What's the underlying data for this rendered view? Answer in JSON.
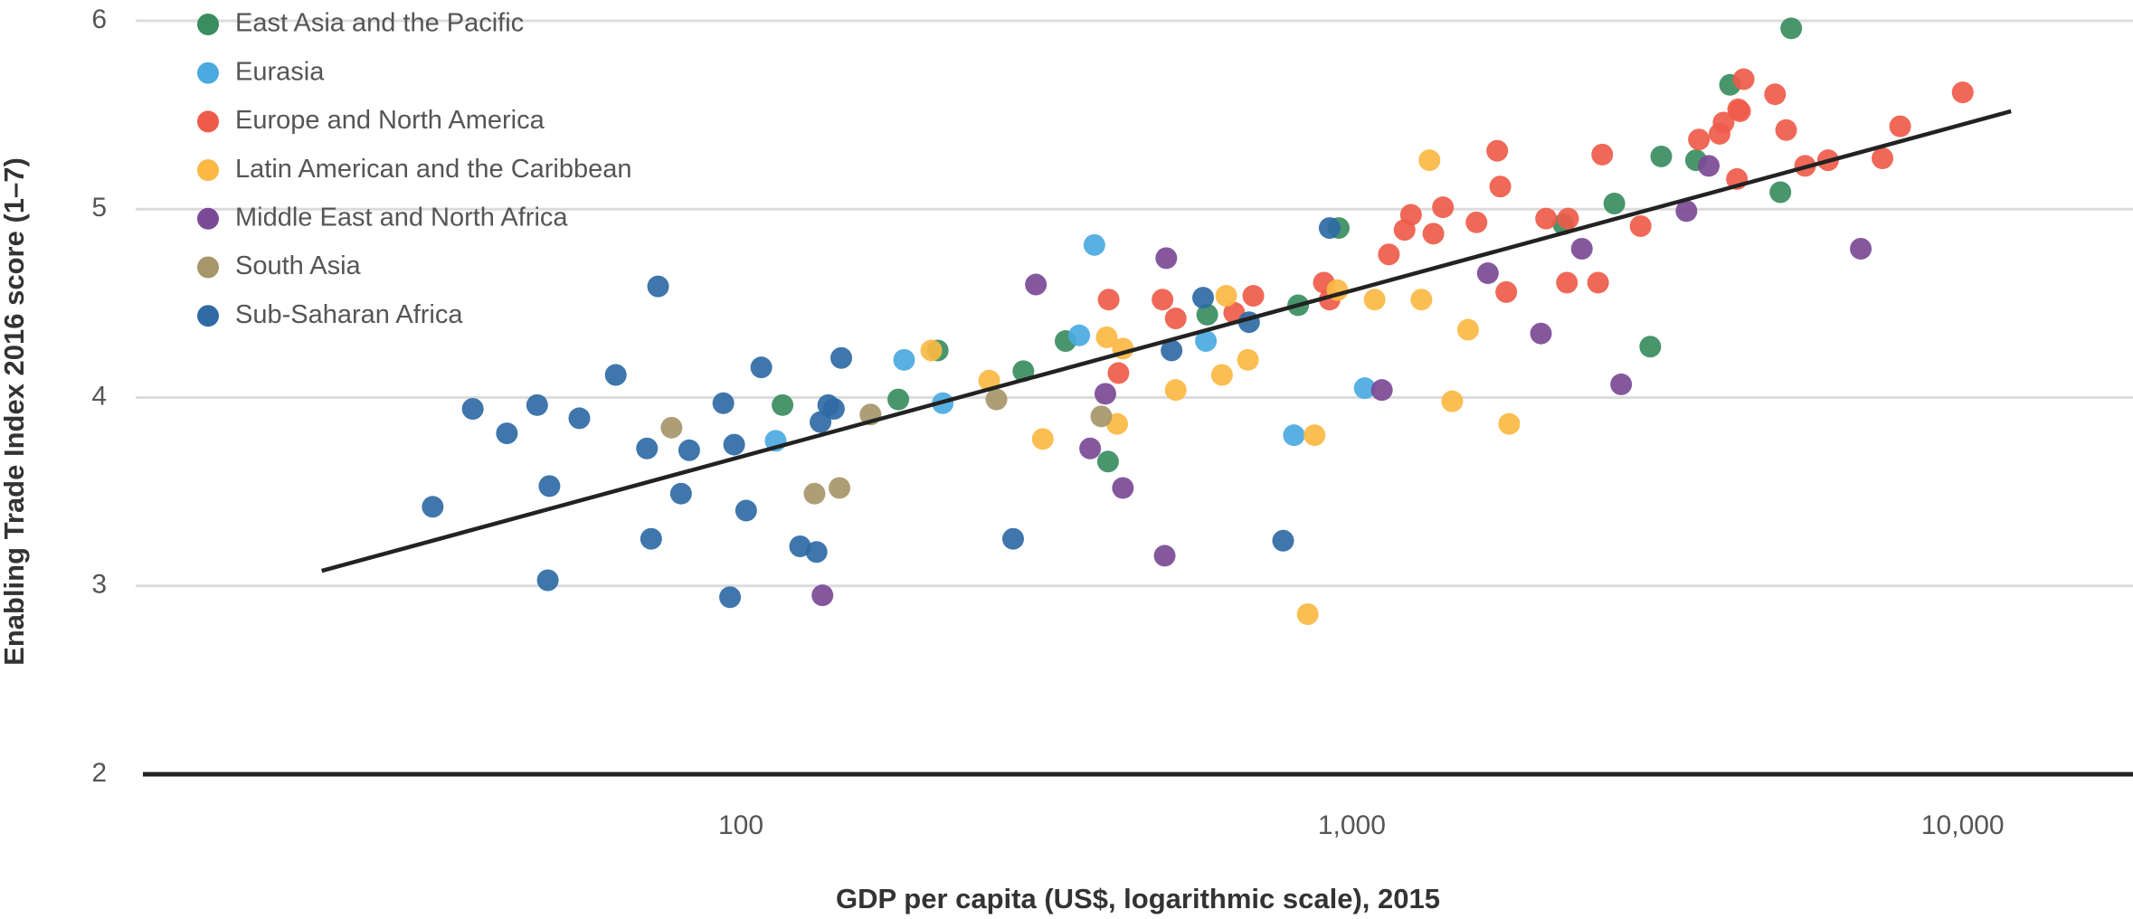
{
  "chart_data": {
    "type": "scatter",
    "xlabel": "GDP per capita (US$, logarithmic scale), 2015",
    "ylabel": "Enabling Trade Index 2016 score (1–7)",
    "xscale": "log",
    "xlim": [
      10.5,
      19000
    ],
    "ylim": [
      2,
      6
    ],
    "xticks": [
      100,
      {
        "value": 1000,
        "label": "1,000"
      },
      {
        "value": 10000,
        "label": "10,000"
      }
    ],
    "yticks": [
      2,
      3,
      4,
      5,
      6
    ],
    "grid": true,
    "legend": "upper left",
    "trend_line": {
      "color": "#222222",
      "x": [
        20.6,
        12000
      ],
      "y": [
        3.08,
        5.52
      ]
    },
    "series": [
      {
        "name": "East Asia and the Pacific",
        "color": "#3a8d5f",
        "x": [
          5240,
          4160,
          3210,
          3660,
          5030,
          2690,
          952,
          2220,
          3080,
          580,
          817,
          340,
          290,
          210,
          181,
          117,
          399
        ],
        "y": [
          5.96,
          5.66,
          5.28,
          5.26,
          5.09,
          5.03,
          4.9,
          4.92,
          4.27,
          4.44,
          4.49,
          4.3,
          4.14,
          4.25,
          3.99,
          3.96,
          3.66
        ]
      },
      {
        "name": "Eurasia",
        "color": "#4aaadf",
        "x": [
          379,
          358,
          577,
          185,
          214,
          114,
          1050,
          804
        ],
        "y": [
          4.81,
          4.33,
          4.3,
          4.2,
          3.97,
          3.77,
          4.05,
          3.8
        ]
      },
      {
        "name": "Europe and North America",
        "color": "#ef5b4a",
        "x": [
          10000,
          4380,
          4930,
          4290,
          4060,
          4000,
          4320,
          5140,
          3700,
          7900,
          7390,
          6020,
          5520,
          4270,
          2570,
          1730,
          1750,
          2260,
          2080,
          1410,
          1250,
          1220,
          1600,
          1360,
          1150,
          2970,
          2250,
          1790,
          900,
          920,
          690,
          515,
          490,
          400,
          415,
          2530,
          642
        ],
        "y": [
          5.62,
          5.69,
          5.61,
          5.53,
          5.46,
          5.4,
          5.52,
          5.42,
          5.37,
          5.44,
          5.27,
          5.26,
          5.23,
          5.16,
          5.29,
          5.31,
          5.12,
          4.95,
          4.95,
          5.01,
          4.97,
          4.89,
          4.93,
          4.87,
          4.76,
          4.91,
          4.61,
          4.56,
          4.61,
          4.52,
          4.54,
          4.42,
          4.52,
          4.52,
          4.13,
          4.61,
          4.45
        ]
      },
      {
        "name": "Latin American and the Caribbean",
        "color": "#fbb843",
        "x": [
          1340,
          1300,
          1090,
          1550,
          947,
          623,
          676,
          613,
          515,
          422,
          397,
          205,
          255,
          312,
          413,
          869,
          1460,
          1810,
          847
        ],
        "y": [
          5.26,
          4.52,
          4.52,
          4.36,
          4.57,
          4.54,
          4.2,
          4.12,
          4.04,
          4.26,
          4.32,
          4.25,
          4.09,
          3.78,
          3.86,
          3.8,
          3.98,
          3.86,
          2.85
        ]
      },
      {
        "name": "Middle East and North Africa",
        "color": "#7b4a96",
        "x": [
          3840,
          3530,
          2380,
          6810,
          1670,
          2040,
          2760,
          1120,
          497,
          304,
          395,
          373,
          422,
          494,
          136
        ],
        "y": [
          5.23,
          4.99,
          4.79,
          4.79,
          4.66,
          4.34,
          4.07,
          4.04,
          4.74,
          4.6,
          4.02,
          3.73,
          3.52,
          3.16,
          2.95
        ]
      },
      {
        "name": "South Asia",
        "color": "#a6966a",
        "x": [
          262,
          163,
          389,
          77,
          145,
          132
        ],
        "y": [
          3.99,
          3.91,
          3.9,
          3.84,
          3.52,
          3.49
        ]
      },
      {
        "name": "Sub-Saharan Africa",
        "color": "#2f6aa5",
        "x": [
          920,
          571,
          679,
          507,
          73.2,
          62.4,
          108,
          146,
          36.4,
          46.4,
          54.4,
          41.4,
          93.6,
          70.2,
          82.3,
          97.5,
          139,
          142,
          135,
          48.6,
          79.8,
          102,
          31.3,
          71.3,
          125,
          133,
          279,
          772,
          48.3,
          96
        ],
        "y": [
          4.9,
          4.53,
          4.4,
          4.25,
          4.59,
          4.12,
          4.16,
          4.21,
          3.94,
          3.96,
          3.89,
          3.81,
          3.97,
          3.73,
          3.72,
          3.75,
          3.96,
          3.94,
          3.87,
          3.53,
          3.49,
          3.4,
          3.42,
          3.25,
          3.21,
          3.18,
          3.25,
          3.24,
          3.03,
          2.94
        ]
      }
    ]
  }
}
